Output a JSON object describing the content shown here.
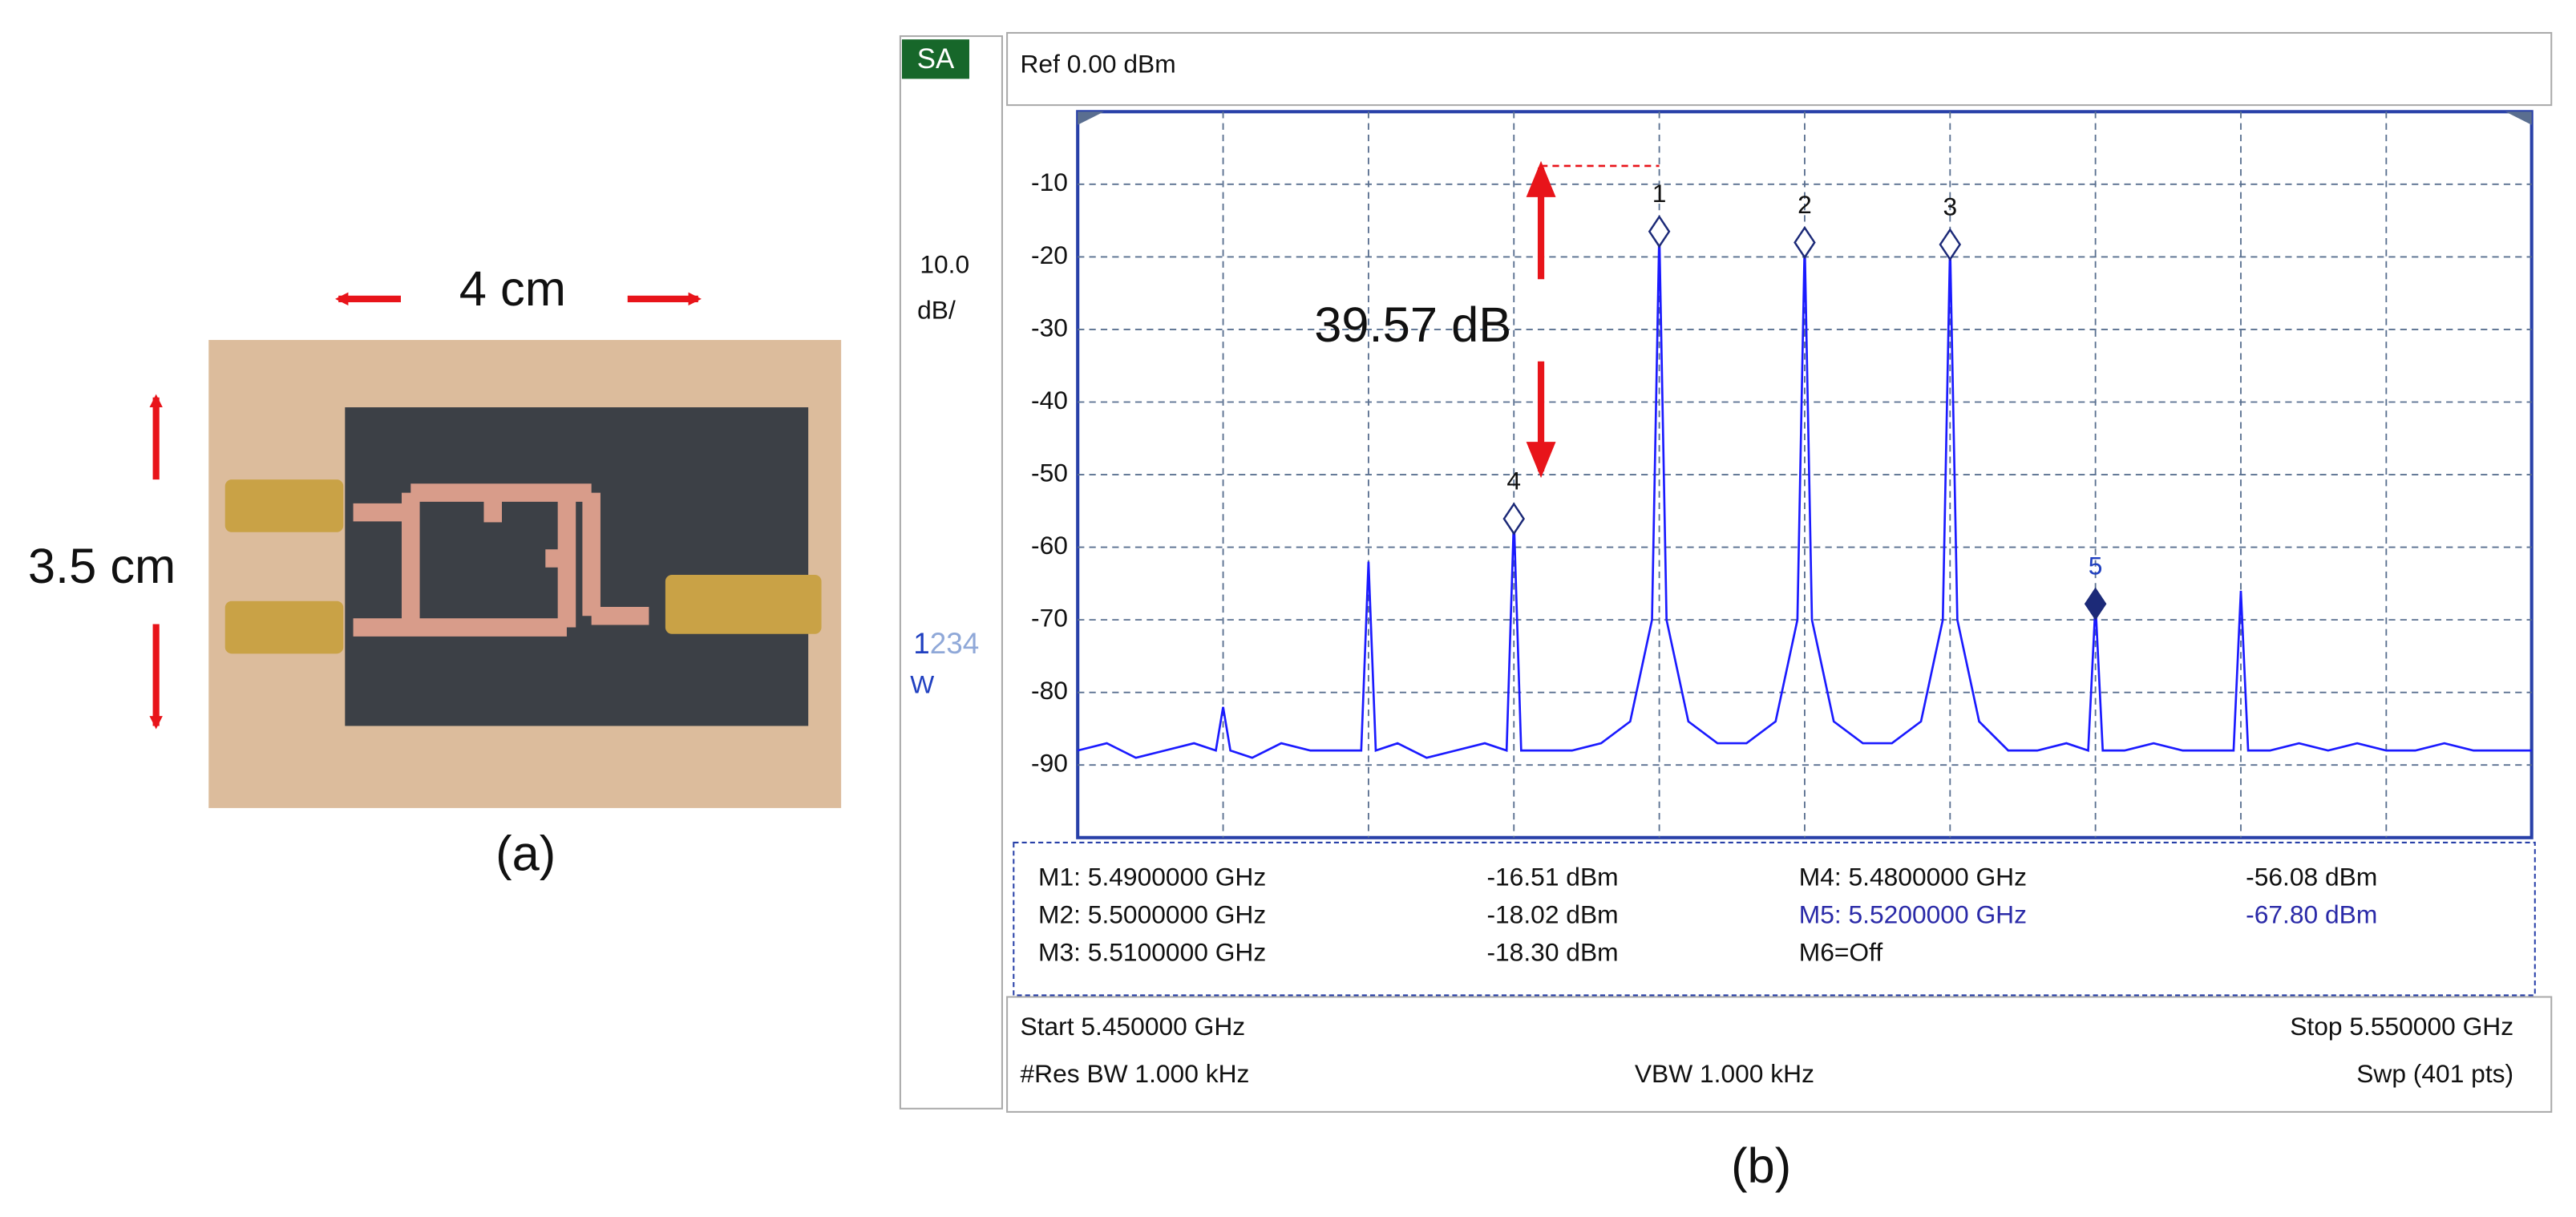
{
  "photo": {
    "width_label": "4 cm",
    "height_label": "3.5 cm",
    "caption": "(a)"
  },
  "analyzer": {
    "mode": "SA",
    "reference": "Ref 0.00 dBm",
    "scale": "10.0",
    "scale_unit": "dB/",
    "trace_active": "1",
    "traces_other": "234",
    "trace_mode": "W",
    "marker_table": [
      [
        "M1: 5.4900000 GHz",
        "-16.51 dBm",
        "M4: 5.4800000 GHz",
        "-56.08 dBm"
      ],
      [
        "M2: 5.5000000 GHz",
        "-18.02 dBm",
        "M5: 5.5200000 GHz",
        "-67.80 dBm"
      ],
      [
        "M3: 5.5100000 GHz",
        "-18.30 dBm",
        "M6=Off"
      ]
    ],
    "start": "Start 5.450000 GHz",
    "stop": "Stop 5.550000 GHz",
    "rbw": "#Res BW 1.000 kHz",
    "vbw": "VBW 1.000 kHz",
    "sweep": "Swp (401 pts)",
    "caption": "(b)"
  },
  "chart_data": {
    "type": "line",
    "color": "#1a1aff",
    "grid": true,
    "annotation": "39.57 dB",
    "xlim": [
      5.45,
      5.55
    ],
    "ylim": [
      -100,
      0
    ],
    "yticks": [
      -10,
      -20,
      -30,
      -40,
      -50,
      -60,
      -70,
      -80,
      -90
    ],
    "x": [
      5.45,
      5.452,
      5.454,
      5.456,
      5.458,
      5.4595,
      5.46,
      5.4605,
      5.462,
      5.464,
      5.466,
      5.468,
      5.4695,
      5.47,
      5.4705,
      5.472,
      5.474,
      5.476,
      5.478,
      5.4795,
      5.48,
      5.4805,
      5.482,
      5.484,
      5.486,
      5.488,
      5.4895,
      5.49,
      5.4905,
      5.492,
      5.494,
      5.496,
      5.498,
      5.4995,
      5.5,
      5.5005,
      5.502,
      5.504,
      5.506,
      5.508,
      5.5095,
      5.51,
      5.5105,
      5.512,
      5.514,
      5.516,
      5.518,
      5.5195,
      5.52,
      5.5205,
      5.522,
      5.524,
      5.526,
      5.528,
      5.5295,
      5.53,
      5.5305,
      5.532,
      5.534,
      5.536,
      5.538,
      5.54,
      5.542,
      5.544,
      5.546,
      5.548,
      5.55
    ],
    "values": [
      -88,
      -87,
      -89,
      -88,
      -87,
      -88,
      -82,
      -88,
      -89,
      -87,
      -88,
      -88,
      -88,
      -62,
      -88,
      -87,
      -89,
      -88,
      -87,
      -88,
      -56.08,
      -88,
      -88,
      -88,
      -87,
      -84,
      -70,
      -16.51,
      -70,
      -84,
      -87,
      -87,
      -84,
      -70,
      -18.02,
      -70,
      -84,
      -87,
      -87,
      -84,
      -70,
      -18.3,
      -70,
      -84,
      -88,
      -88,
      -87,
      -88,
      -67.8,
      -88,
      -88,
      -87,
      -88,
      -88,
      -88,
      -66,
      -88,
      -88,
      -87,
      -88,
      -87,
      -88,
      -88,
      -87,
      -88,
      -88,
      -88
    ],
    "markers": [
      {
        "label": "1",
        "x": 5.49,
        "y": -16.51,
        "filled": false
      },
      {
        "label": "2",
        "x": 5.5,
        "y": -18.02,
        "filled": false
      },
      {
        "label": "3",
        "x": 5.51,
        "y": -18.3,
        "filled": false
      },
      {
        "label": "4",
        "x": 5.48,
        "y": -56.08,
        "filled": false
      },
      {
        "label": "5",
        "x": 5.52,
        "y": -67.8,
        "filled": true
      }
    ]
  }
}
